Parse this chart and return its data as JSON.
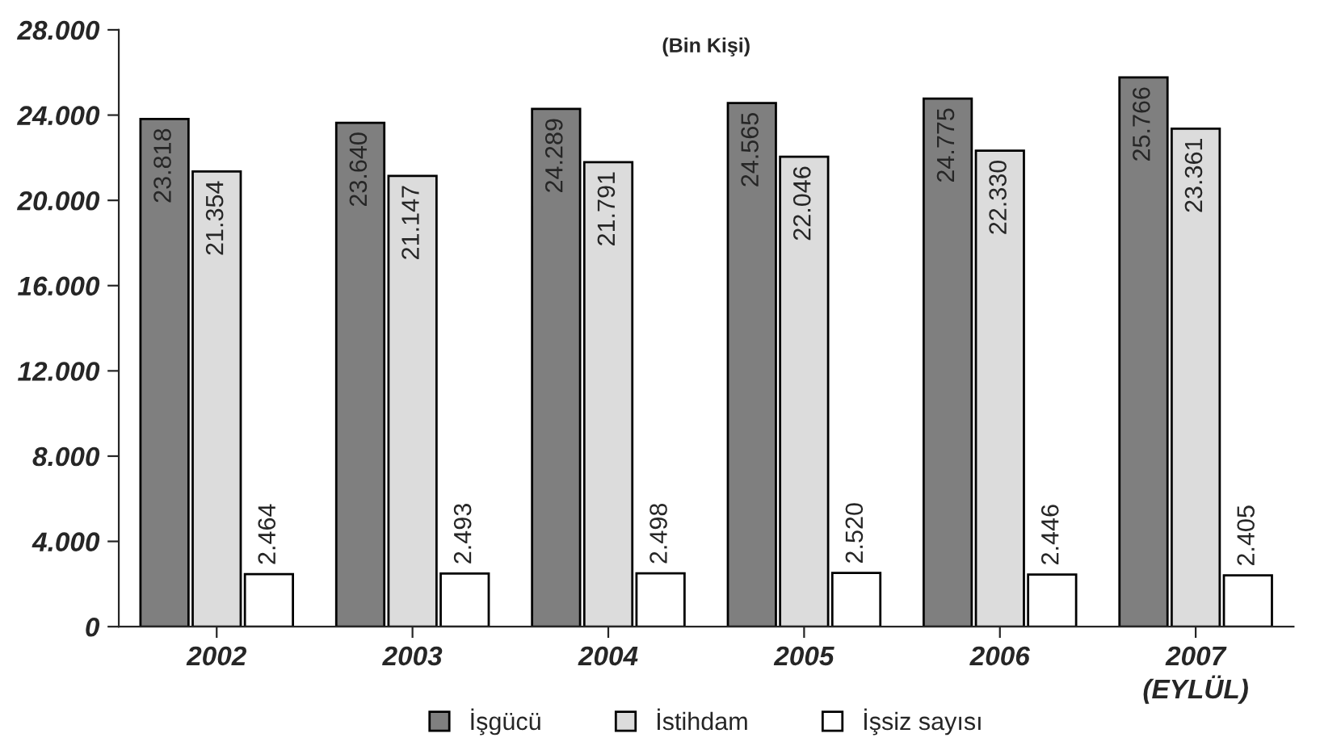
{
  "chart_data": {
    "type": "bar",
    "title": "(Bin Kişi)",
    "categories": [
      "2002",
      "2003",
      "2004",
      "2005",
      "2006",
      "2007\n(EYLÜL)"
    ],
    "series": [
      {
        "name": "İşgücü",
        "color": "#7f7f7f",
        "values": [
          23818,
          23640,
          24289,
          24565,
          24775,
          25766
        ],
        "value_labels": [
          "23.818",
          "23.640",
          "24.289",
          "24.565",
          "24.775",
          "25.766"
        ]
      },
      {
        "name": "İstihdam",
        "color": "#dcdcdc",
        "values": [
          21354,
          21147,
          21791,
          22046,
          22330,
          23361
        ],
        "value_labels": [
          "21.354",
          "21.147",
          "21.791",
          "22.046",
          "22.330",
          "23.361"
        ]
      },
      {
        "name": "İşsiz sayısı",
        "color": "#ffffff",
        "values": [
          2464,
          2493,
          2498,
          2520,
          2446,
          2405
        ],
        "value_labels": [
          "2.464",
          "2.493",
          "2.498",
          "2.520",
          "2.446",
          "2.405"
        ]
      }
    ],
    "ylim": [
      0,
      28000
    ],
    "yticks": [
      {
        "value": 0,
        "label": "0"
      },
      {
        "value": 4000,
        "label": "4.000"
      },
      {
        "value": 8000,
        "label": "8.000"
      },
      {
        "value": 12000,
        "label": "12.000"
      },
      {
        "value": 16000,
        "label": "16.000"
      },
      {
        "value": 20000,
        "label": "20.000"
      },
      {
        "value": 24000,
        "label": "24.000"
      },
      {
        "value": 28000,
        "label": "28.000"
      }
    ],
    "grid": false,
    "legend": "bottom"
  }
}
